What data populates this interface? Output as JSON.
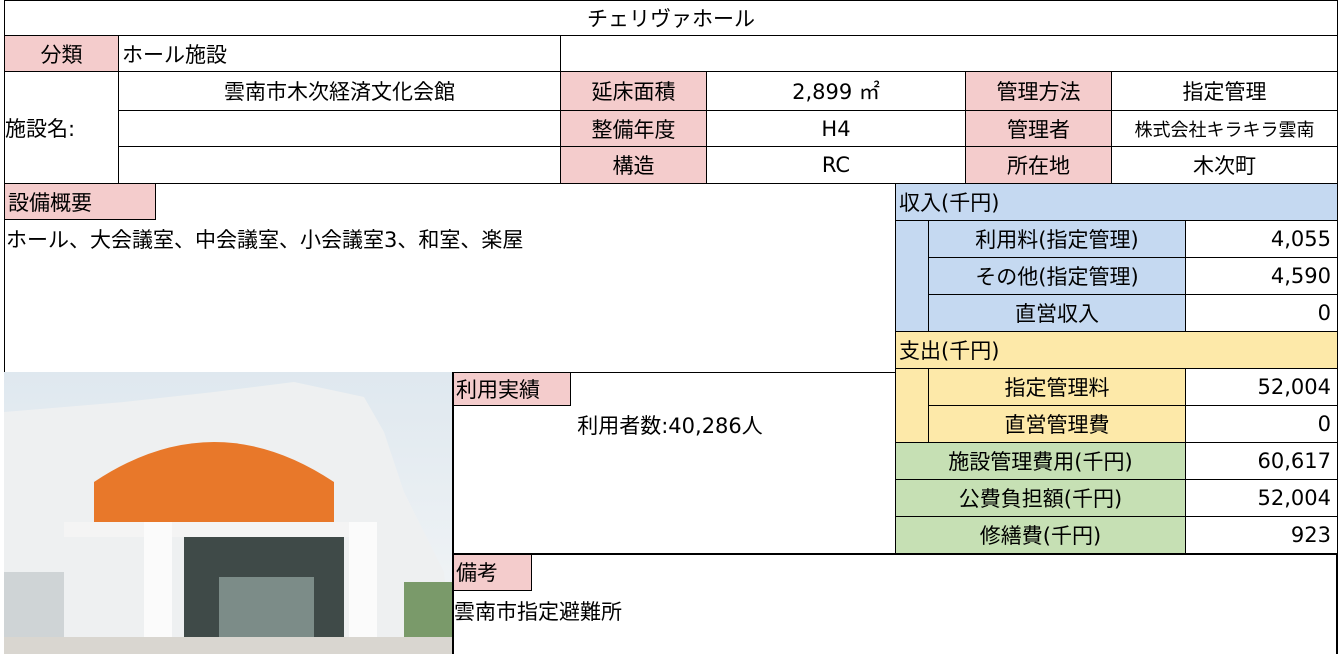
{
  "title": "チェリヴァホール",
  "classification": {
    "label": "分類",
    "value": "ホール施設"
  },
  "facility": {
    "label": "施設名:",
    "name": "雲南市木次経済文化会館"
  },
  "specs": [
    {
      "label": "延床面積",
      "value": "2,899 ㎡",
      "label2": "管理方法",
      "value2": "指定管理"
    },
    {
      "label": "整備年度",
      "value": "H4",
      "label2": "管理者",
      "value2": "株式会社キラキラ雲南"
    },
    {
      "label": "構造",
      "value": "RC",
      "label2": "所在地",
      "value2": "木次町"
    }
  ],
  "equipment": {
    "label": "設備概要",
    "text": "ホール、大会議室、中会議室、小会議室3、和室、楽屋"
  },
  "income": {
    "header": "収入(千円)",
    "rows": [
      {
        "label": "利用料(指定管理)",
        "value": "4,055"
      },
      {
        "label": "その他(指定管理)",
        "value": "4,590"
      },
      {
        "label": "直営収入",
        "value": "0"
      }
    ]
  },
  "expenditure": {
    "header": "支出(千円)",
    "rows": [
      {
        "label": "指定管理料",
        "value": "52,004"
      },
      {
        "label": "直営管理費",
        "value": "0"
      }
    ]
  },
  "summary": [
    {
      "label": "施設管理費用(千円)",
      "value": "60,617"
    },
    {
      "label": "公費負担額(千円)",
      "value": "52,004"
    },
    {
      "label": "修繕費(千円)",
      "value": "923"
    }
  ],
  "usage": {
    "label": "利用実績",
    "text": "利用者数:40,286人"
  },
  "remarks": {
    "label": "備考",
    "text": "雲南市指定避難所"
  }
}
